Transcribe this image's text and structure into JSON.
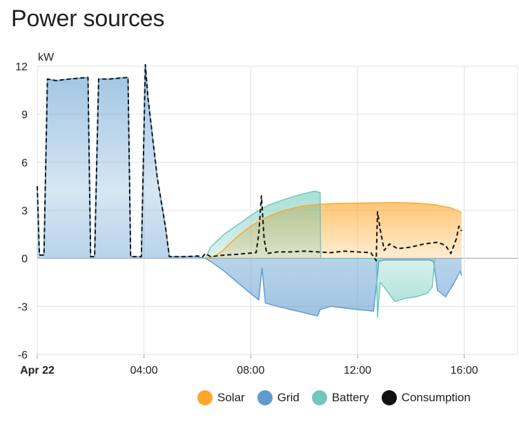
{
  "card": {
    "title": "Power sources"
  },
  "chart_data": {
    "type": "area",
    "ylabel": "kW",
    "ylim": [
      -6,
      12
    ],
    "yticks": [
      -6,
      -3,
      0,
      3,
      6,
      9,
      12
    ],
    "xlim": [
      0,
      18
    ],
    "xticks": [
      {
        "x": 0,
        "label": "Apr 22",
        "bold": true
      },
      {
        "x": 4,
        "label": "04:00"
      },
      {
        "x": 8,
        "label": "08:00"
      },
      {
        "x": 12,
        "label": "12:00"
      },
      {
        "x": 16,
        "label": "16:00"
      }
    ],
    "grid": true,
    "legend_position": "bottom-right",
    "series": [
      {
        "name": "Solar",
        "color": "#ffa729",
        "points": [
          [
            6.3,
            0
          ],
          [
            6.6,
            0.1
          ],
          [
            6.9,
            0.4
          ],
          [
            7.2,
            0.9
          ],
          [
            7.6,
            1.5
          ],
          [
            8.0,
            2.0
          ],
          [
            8.5,
            2.5
          ],
          [
            9.0,
            2.85
          ],
          [
            9.5,
            3.1
          ],
          [
            10.0,
            3.28
          ],
          [
            10.6,
            3.38
          ],
          [
            11.2,
            3.42
          ],
          [
            12.0,
            3.45
          ],
          [
            12.8,
            3.47
          ],
          [
            13.5,
            3.48
          ],
          [
            14.2,
            3.45
          ],
          [
            14.9,
            3.35
          ],
          [
            15.5,
            3.15
          ],
          [
            15.9,
            2.85
          ]
        ]
      },
      {
        "name": "Grid",
        "color": "#5e9ccf",
        "points": [
          [
            0,
            4.5
          ],
          [
            0.08,
            0.2
          ],
          [
            0.25,
            0.2
          ],
          [
            0.38,
            11.2
          ],
          [
            0.7,
            11.1
          ],
          [
            1.2,
            11.2
          ],
          [
            1.9,
            11.3
          ],
          [
            2.0,
            0.1
          ],
          [
            2.15,
            0.1
          ],
          [
            2.3,
            11.2
          ],
          [
            2.7,
            11.2
          ],
          [
            3.4,
            11.3
          ],
          [
            3.5,
            0.1
          ],
          [
            3.9,
            0.1
          ],
          [
            4.05,
            12.1
          ],
          [
            4.15,
            10
          ],
          [
            4.5,
            5
          ],
          [
            4.8,
            2
          ],
          [
            4.95,
            0.1
          ],
          [
            5.5,
            0.1
          ],
          [
            6.0,
            0.1
          ],
          [
            6.3,
            0
          ],
          [
            6.5,
            -0.2
          ],
          [
            7.0,
            -0.8
          ],
          [
            7.5,
            -1.5
          ],
          [
            8.0,
            -2.2
          ],
          [
            8.3,
            -2.6
          ],
          [
            8.42,
            -0.6
          ],
          [
            8.55,
            -2.8
          ],
          [
            9.0,
            -3.0
          ],
          [
            9.5,
            -3.2
          ],
          [
            10.0,
            -3.4
          ],
          [
            10.5,
            -3.6
          ],
          [
            10.6,
            -3.2
          ],
          [
            11.0,
            -3.0
          ],
          [
            11.5,
            -3.1
          ],
          [
            12.0,
            -3.2
          ],
          [
            12.6,
            -3.3
          ],
          [
            12.72,
            -1.5
          ],
          [
            12.8,
            -0.2
          ],
          [
            13.0,
            -0.1
          ],
          [
            14.0,
            -0.1
          ],
          [
            14.7,
            -0.1
          ],
          [
            14.85,
            -0.2
          ],
          [
            15.0,
            -2.0
          ],
          [
            15.3,
            -2.4
          ],
          [
            15.6,
            -1.6
          ],
          [
            15.85,
            -0.8
          ],
          [
            15.9,
            -1.1
          ]
        ]
      },
      {
        "name": "Battery",
        "color": "#6fc8b9",
        "points": [
          [
            6.3,
            0
          ],
          [
            6.5,
            0.7
          ],
          [
            7.0,
            1.5
          ],
          [
            7.6,
            2.2
          ],
          [
            8.2,
            2.9
          ],
          [
            8.7,
            3.35
          ],
          [
            9.3,
            3.7
          ],
          [
            9.9,
            4.0
          ],
          [
            10.4,
            4.2
          ],
          [
            10.6,
            4.1
          ],
          [
            10.62,
            0
          ],
          [
            12.7,
            0
          ],
          [
            12.75,
            -3.7
          ],
          [
            12.85,
            -1.5
          ],
          [
            13.0,
            -1.8
          ],
          [
            13.4,
            -2.7
          ],
          [
            13.8,
            -2.5
          ],
          [
            14.2,
            -2.4
          ],
          [
            14.6,
            -2.2
          ],
          [
            14.8,
            -1.8
          ],
          [
            14.9,
            0
          ]
        ]
      },
      {
        "name": "Consumption",
        "color": "#111111",
        "points": [
          [
            0,
            4.5
          ],
          [
            0.08,
            0.2
          ],
          [
            0.25,
            0.2
          ],
          [
            0.38,
            11.2
          ],
          [
            0.7,
            11.1
          ],
          [
            1.2,
            11.2
          ],
          [
            1.9,
            11.3
          ],
          [
            2.0,
            0.1
          ],
          [
            2.15,
            0.1
          ],
          [
            2.3,
            11.2
          ],
          [
            2.7,
            11.2
          ],
          [
            3.4,
            11.3
          ],
          [
            3.5,
            0.1
          ],
          [
            3.9,
            0.1
          ],
          [
            4.05,
            12.1
          ],
          [
            4.15,
            10
          ],
          [
            4.5,
            5
          ],
          [
            4.8,
            2
          ],
          [
            4.95,
            0.1
          ],
          [
            5.5,
            0.1
          ],
          [
            6.0,
            0.15
          ],
          [
            6.2,
            0.1
          ],
          [
            6.3,
            0.3
          ],
          [
            6.5,
            0.1
          ],
          [
            7.0,
            0.2
          ],
          [
            7.5,
            0.25
          ],
          [
            7.8,
            0.3
          ],
          [
            8.2,
            0.35
          ],
          [
            8.3,
            1.5
          ],
          [
            8.4,
            3.9
          ],
          [
            8.5,
            1.2
          ],
          [
            8.6,
            0.3
          ],
          [
            9.0,
            0.4
          ],
          [
            9.5,
            0.4
          ],
          [
            10.0,
            0.45
          ],
          [
            10.5,
            0.4
          ],
          [
            11.0,
            0.35
          ],
          [
            11.5,
            0.45
          ],
          [
            12.0,
            0.4
          ],
          [
            12.5,
            0.35
          ],
          [
            12.7,
            -0.15
          ],
          [
            12.75,
            2.9
          ],
          [
            12.85,
            1.8
          ],
          [
            13.0,
            0.5
          ],
          [
            13.2,
            0.9
          ],
          [
            13.5,
            0.6
          ],
          [
            14.0,
            0.7
          ],
          [
            14.5,
            0.9
          ],
          [
            15.0,
            1.0
          ],
          [
            15.3,
            0.8
          ],
          [
            15.5,
            0.3
          ],
          [
            15.7,
            1.2
          ],
          [
            15.8,
            2.0
          ],
          [
            15.9,
            1.7
          ]
        ]
      }
    ]
  }
}
